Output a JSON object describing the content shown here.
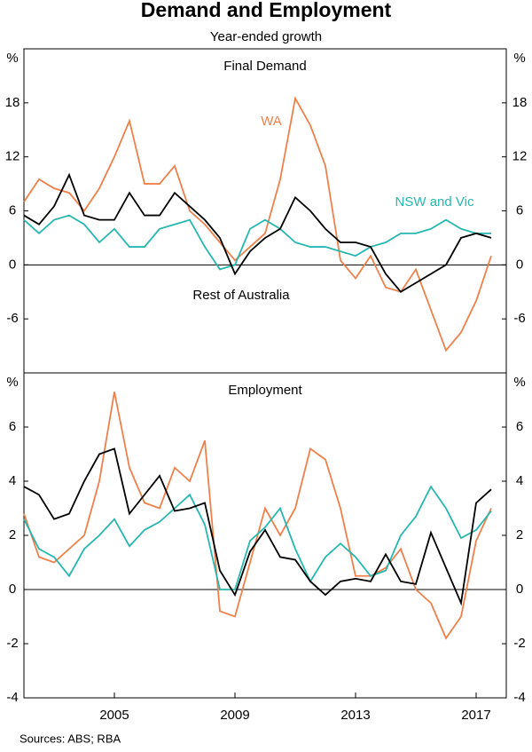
{
  "title": "Demand and Employment",
  "subtitle": "Year-ended growth",
  "source": "Sources: ABS; RBA",
  "chart_data": [
    {
      "type": "line",
      "title": "Final Demand",
      "unit": "%",
      "x": [
        2002.0,
        2002.5,
        2003.0,
        2003.5,
        2004.0,
        2004.5,
        2005.0,
        2005.5,
        2006.0,
        2006.5,
        2007.0,
        2007.5,
        2008.0,
        2008.5,
        2009.0,
        2009.5,
        2010.0,
        2010.5,
        2011.0,
        2011.5,
        2012.0,
        2012.5,
        2013.0,
        2013.5,
        2014.0,
        2014.5,
        2015.0,
        2015.5,
        2016.0,
        2016.5,
        2017.0,
        2017.5
      ],
      "xlim": [
        2002,
        2018
      ],
      "ylim": [
        -12,
        24
      ],
      "yticks": [
        -6,
        0,
        6,
        12,
        18
      ],
      "series": [
        {
          "name": "WA",
          "color": "#f0804a",
          "values": [
            7,
            9.5,
            8.5,
            8,
            6,
            8.5,
            12,
            16,
            9,
            9,
            11,
            6,
            4.5,
            2.5,
            0.5,
            2,
            3.5,
            9.5,
            18.5,
            15.5,
            11,
            0.5,
            -1.5,
            1,
            -2.5,
            -3,
            -0.5,
            -5,
            -9.5,
            -7.5,
            -4,
            1
          ]
        },
        {
          "name": "NSW and Vic",
          "color": "#26b7b0",
          "values": [
            5,
            3.5,
            5,
            5.5,
            4.5,
            2.5,
            4,
            2,
            2,
            4,
            4.5,
            5,
            2,
            -0.5,
            0,
            4,
            5,
            4,
            2.5,
            2,
            2,
            1.5,
            1,
            2,
            2.5,
            3.5,
            3.5,
            4,
            5,
            4,
            3.5,
            3.5
          ]
        },
        {
          "name": "Rest of Australia",
          "color": "#000000",
          "values": [
            5.5,
            4.5,
            6.5,
            10,
            5.5,
            5,
            5,
            8,
            5.5,
            5.5,
            8,
            6.5,
            5,
            3,
            -1,
            1.5,
            3,
            4,
            7.5,
            6,
            4,
            2.5,
            2.5,
            2,
            -1,
            -3,
            -2,
            -1,
            0,
            3,
            3.5,
            3
          ]
        }
      ]
    },
    {
      "type": "line",
      "title": "Employment",
      "unit": "%",
      "x": [
        2002.0,
        2002.5,
        2003.0,
        2003.5,
        2004.0,
        2004.5,
        2005.0,
        2005.5,
        2006.0,
        2006.5,
        2007.0,
        2007.5,
        2008.0,
        2008.5,
        2009.0,
        2009.5,
        2010.0,
        2010.5,
        2011.0,
        2011.5,
        2012.0,
        2012.5,
        2013.0,
        2013.5,
        2014.0,
        2014.5,
        2015.0,
        2015.5,
        2016.0,
        2016.5,
        2017.0,
        2017.5
      ],
      "xlim": [
        2002,
        2018
      ],
      "xticks": [
        2005,
        2009,
        2013,
        2017
      ],
      "ylim": [
        -4,
        8
      ],
      "yticks": [
        -4,
        -2,
        0,
        2,
        4,
        6
      ],
      "series": [
        {
          "color": "#f0804a",
          "values": [
            2.8,
            1.2,
            1,
            1.5,
            2,
            4,
            7.3,
            4.5,
            3.2,
            3,
            4.5,
            4,
            5.5,
            -0.8,
            -1,
            1,
            3,
            2,
            3,
            5.2,
            4.8,
            3,
            0.5,
            0.5,
            0.8,
            1.5,
            0,
            -0.5,
            -1.8,
            -1,
            1.8,
            3
          ]
        },
        {
          "color": "#26b7b0",
          "values": [
            2.6,
            1.5,
            1.2,
            0.5,
            1.5,
            2,
            2.6,
            1.6,
            2.2,
            2.5,
            3,
            3.5,
            2.4,
            0,
            0,
            1.8,
            2.3,
            3,
            1.5,
            0.3,
            1.2,
            1.7,
            1.2,
            0.5,
            0.7,
            2,
            2.7,
            3.8,
            3,
            1.9,
            2.2,
            2.9
          ]
        },
        {
          "color": "#000000",
          "values": [
            3.8,
            3.5,
            2.6,
            2.8,
            4,
            5,
            5.2,
            2.8,
            3.5,
            4.2,
            2.9,
            3,
            3.2,
            0.7,
            -0.2,
            1.4,
            2.2,
            1.2,
            1.1,
            0.3,
            -0.2,
            0.3,
            0.4,
            0.3,
            1.3,
            0.3,
            0.2,
            2.1,
            0.8,
            -0.5,
            3.2,
            3.7
          ]
        }
      ]
    }
  ]
}
